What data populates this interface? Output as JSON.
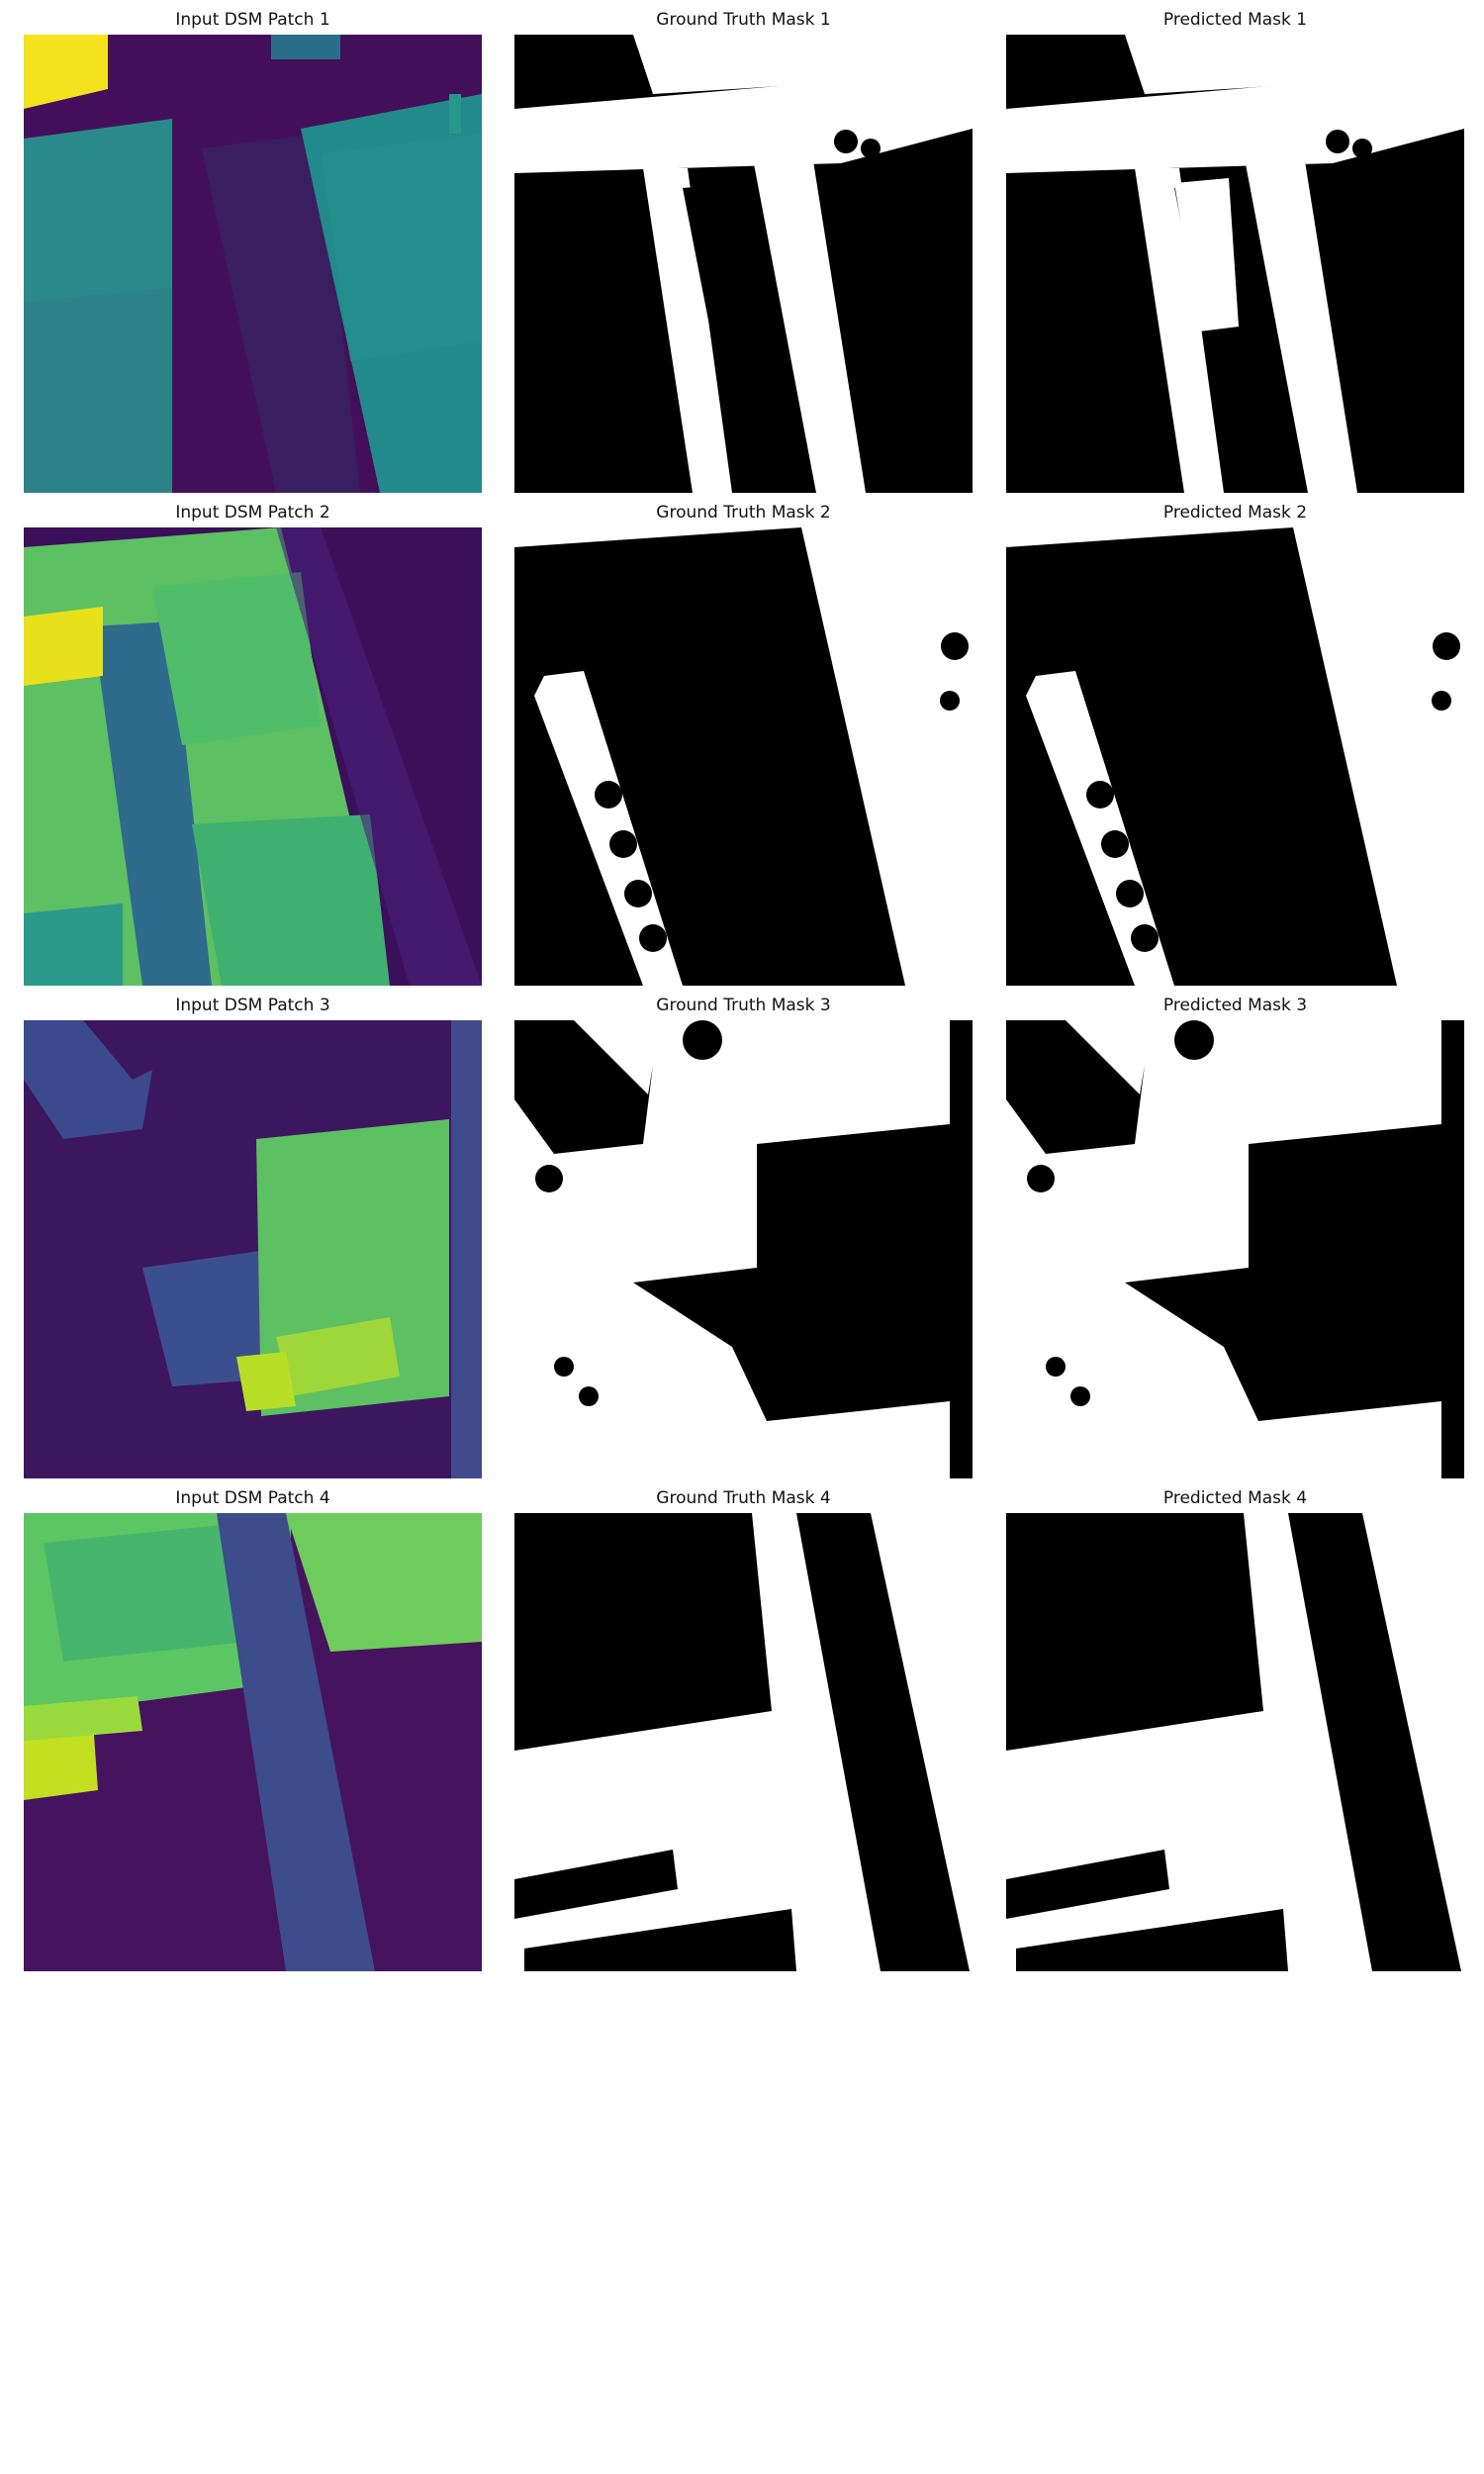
{
  "figure": {
    "rows": [
      {
        "patch": 1,
        "titles": {
          "input": "Input DSM Patch 1",
          "ground_truth": "Ground Truth Mask 1",
          "predicted": "Predicted Mask 1"
        }
      },
      {
        "patch": 2,
        "titles": {
          "input": "Input DSM Patch 2",
          "ground_truth": "Ground Truth Mask 2",
          "predicted": "Predicted Mask 2"
        }
      },
      {
        "patch": 3,
        "titles": {
          "input": "Input DSM Patch 3",
          "ground_truth": "Ground Truth Mask 3",
          "predicted": "Predicted Mask 3"
        }
      },
      {
        "patch": 4,
        "titles": {
          "input": "Input DSM Patch 4",
          "ground_truth": "Ground Truth Mask 4",
          "predicted": "Predicted Mask 4"
        }
      }
    ],
    "colormap": "viridis",
    "mask_colors": {
      "foreground": "#ffffff",
      "background": "#000000"
    }
  }
}
